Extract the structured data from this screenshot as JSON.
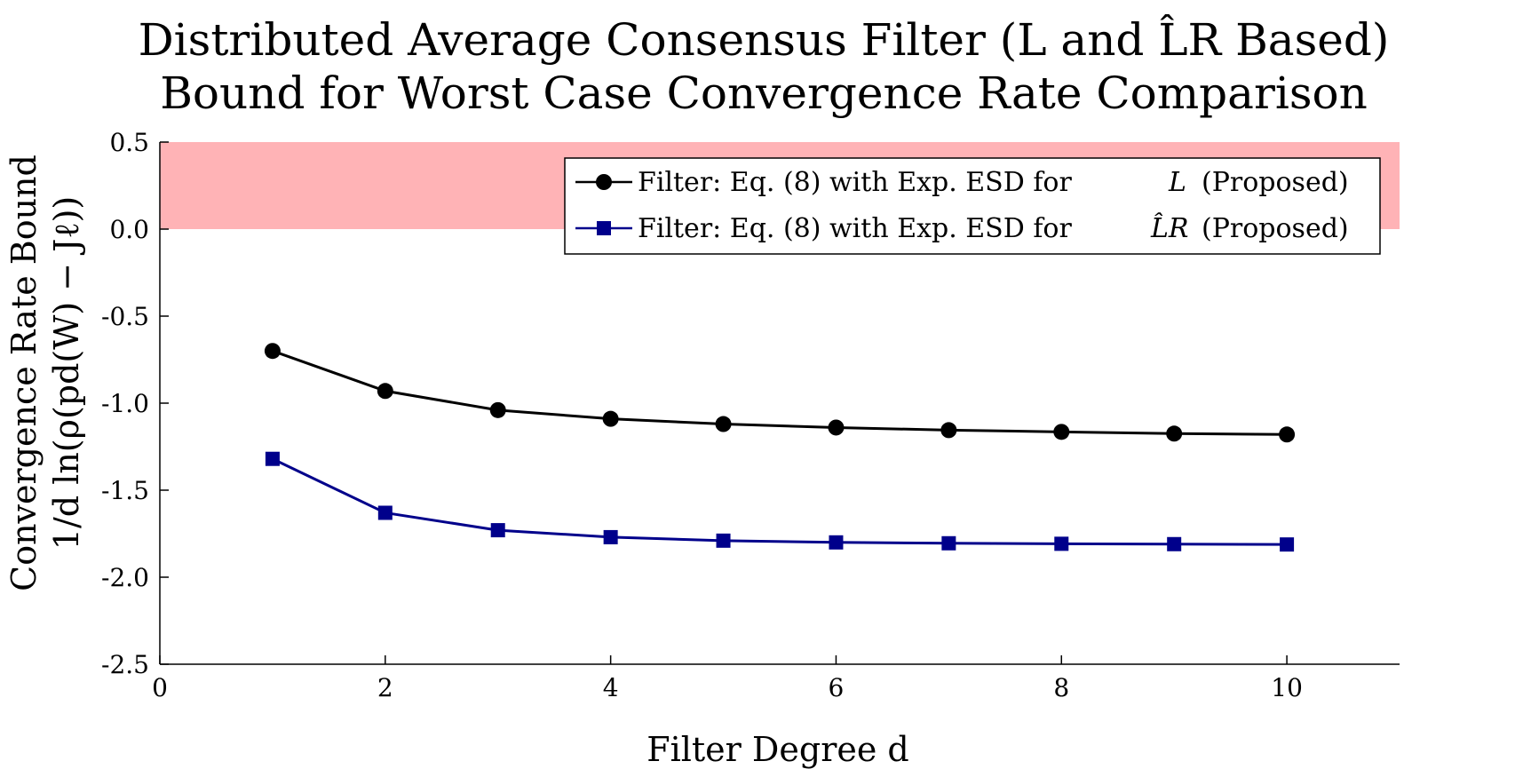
{
  "chart_data": {
    "type": "line",
    "title_line1": "Distributed Average Consensus Filter (L and L̂R Based)",
    "title_line2": "Bound for Worst Case Convergence Rate Comparison",
    "xlabel": "Filter Degree d",
    "ylabel_line1": "Convergence Rate Bound",
    "ylabel_line2": "1/d ln(ρ(pd(W) − Jℓ))",
    "xlim": [
      0,
      11
    ],
    "ylim": [
      -2.5,
      0.5
    ],
    "xticks": [
      0,
      2,
      4,
      6,
      8,
      10
    ],
    "yticks": [
      0.5,
      0.0,
      -0.5,
      -1.0,
      -1.5,
      -2.0,
      -2.5
    ],
    "xtick_labels": [
      "0",
      "2",
      "4",
      "6",
      "8",
      "10"
    ],
    "ytick_labels": [
      "0.5",
      "0.0",
      "-0.5",
      "-1.0",
      "-1.5",
      "-2.0",
      "-2.5"
    ],
    "shaded_region": {
      "y_from": 0.0,
      "y_to": 0.5,
      "color": "#ffb3b6"
    },
    "x": [
      1,
      2,
      3,
      4,
      5,
      6,
      7,
      8,
      9,
      10
    ],
    "series": [
      {
        "name": "Filter: Eq. (8) with Exp. ESD for L (Proposed)",
        "color": "#000000",
        "marker": "circle",
        "values": [
          -0.7,
          -0.93,
          -1.04,
          -1.09,
          -1.12,
          -1.14,
          -1.155,
          -1.165,
          -1.175,
          -1.18
        ]
      },
      {
        "name": "Filter: Eq. (8) with Exp. ESD for L̂R (Proposed)",
        "color": "#00008b",
        "marker": "square",
        "values": [
          -1.32,
          -1.63,
          -1.73,
          -1.77,
          -1.79,
          -1.8,
          -1.805,
          -1.808,
          -1.81,
          -1.812
        ]
      }
    ],
    "legend": {
      "position": "top-right",
      "entries": [
        {
          "prefix": "Filter: Eq. (8) with Exp. ESD for",
          "symbol": "L",
          "suffix": "(Proposed)"
        },
        {
          "prefix": "Filter: Eq. (8) with Exp. ESD for",
          "symbol": "L̂R",
          "suffix": "(Proposed)"
        }
      ]
    },
    "grid": false
  }
}
